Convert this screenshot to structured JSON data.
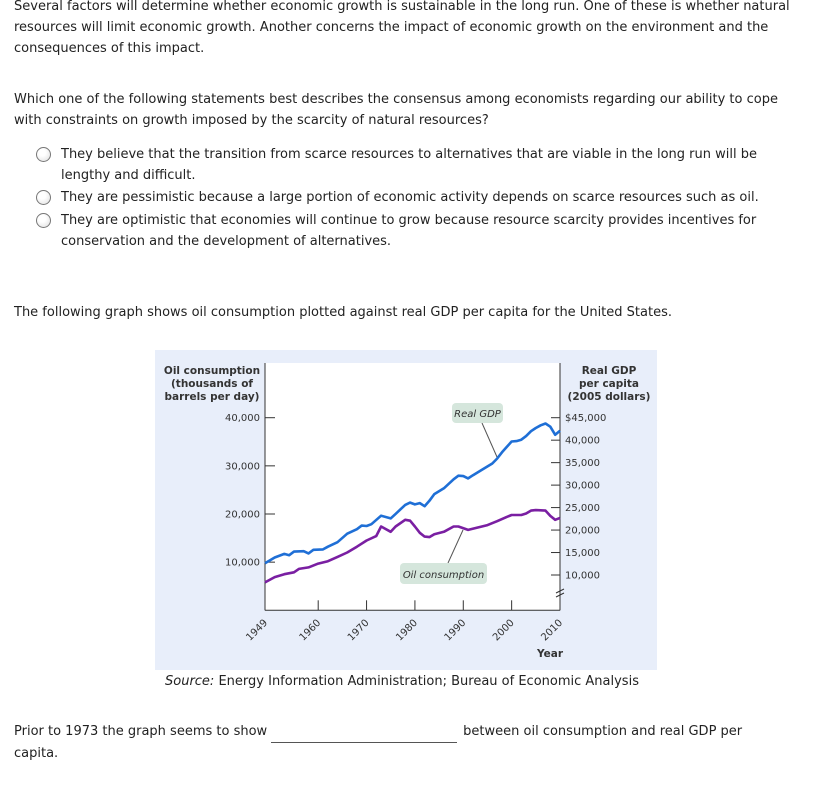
{
  "intro": "Several factors will determine whether economic growth is sustainable in the long run. One of these is whether natural resources will limit economic growth. Another concerns the impact of economic growth on the environment and the consequences of this impact.",
  "question": "Which one of the following statements best describes the consensus among economists regarding our ability to cope with constraints on growth imposed by the scarcity of natural resources?",
  "options": [
    {
      "label": "They believe that the transition from scarce resources to alternatives that are viable in the long run will be lengthy and difficult.",
      "selected": false
    },
    {
      "label": "They are pessimistic because a large portion of economic activity depends on scarce resources such as oil.",
      "selected": false
    },
    {
      "label": "They are optimistic that economies will continue to grow because resource scarcity provides incentives for conservation and the development of alternatives.",
      "selected": false
    }
  ],
  "graph_intro": "The following graph shows oil consumption plotted against real GDP per capita for the United States.",
  "source": {
    "prefix": "Source:",
    "text": " Energy Information Administration; Bureau of Economic Analysis"
  },
  "fill_in": {
    "before": "Prior to 1973 the graph seems to show",
    "value": "",
    "after": "between oil consumption and real GDP per",
    "after2": "capita."
  },
  "chart_data": {
    "type": "line",
    "xlabel": "Year",
    "x_ticks": [
      "1949",
      "1960",
      "1970",
      "1980",
      "1990",
      "2000",
      "2010"
    ],
    "xlim": [
      1949,
      2010
    ],
    "left_axis": {
      "label": [
        "Oil consumption",
        "(thousands of",
        "barrels per day)"
      ],
      "ticks": [
        "40,000",
        "30,000",
        "20,000",
        "10,000"
      ],
      "tick_values": [
        40000,
        30000,
        20000,
        10000
      ],
      "ylim": [
        0,
        40000
      ]
    },
    "right_axis": {
      "label": [
        "Real GDP",
        "per capita",
        "(2005 dollars)"
      ],
      "ticks": [
        "$45,000",
        "40,000",
        "35,000",
        "30,000",
        "25,000",
        "20,000",
        "15,000",
        "10,000"
      ],
      "tick_values": [
        45000,
        40000,
        35000,
        30000,
        25000,
        20000,
        15000,
        10000
      ],
      "ylim": [
        10000,
        45000
      ],
      "axis_break": true
    },
    "colors": {
      "real_gdp": "#1f6fd6",
      "oil": "#7a1fa2",
      "panel_bg": "#e8eefa",
      "label_bg": "#d5e6dc"
    },
    "series": [
      {
        "name": "Real GDP",
        "axis": "right",
        "x": [
          1949,
          1951,
          1953,
          1954,
          1955,
          1957,
          1958,
          1959,
          1961,
          1962,
          1964,
          1966,
          1968,
          1969,
          1970,
          1971,
          1973,
          1975,
          1976,
          1978,
          1979,
          1980,
          1981,
          1982,
          1983,
          1984,
          1986,
          1988,
          1989,
          1990,
          1991,
          1992,
          1994,
          1996,
          1997,
          1998,
          1999,
          2000,
          2001,
          2002,
          2003,
          2004,
          2005,
          2006,
          2007,
          2008,
          2009,
          2010
        ],
        "y": [
          12600,
          13900,
          14700,
          14400,
          15200,
          15300,
          14800,
          15600,
          15700,
          16300,
          17300,
          19200,
          20200,
          21000,
          20900,
          21300,
          23200,
          22600,
          23600,
          25600,
          26100,
          25700,
          26000,
          25300,
          26500,
          28000,
          29300,
          31300,
          32100,
          32000,
          31500,
          32200,
          33500,
          34800,
          35900,
          37300,
          38500,
          39700,
          39800,
          40100,
          40900,
          42000,
          42700,
          43300,
          43700,
          43000,
          41200,
          42100
        ]
      },
      {
        "name": "Oil consumption",
        "axis": "left",
        "x": [
          1949,
          1951,
          1953,
          1955,
          1956,
          1958,
          1960,
          1962,
          1964,
          1966,
          1968,
          1970,
          1972,
          1973,
          1975,
          1976,
          1978,
          1979,
          1980,
          1981,
          1982,
          1983,
          1984,
          1986,
          1988,
          1989,
          1991,
          1993,
          1995,
          1997,
          1999,
          2000,
          2002,
          2003,
          2004,
          2005,
          2007,
          2008,
          2009,
          2010
        ],
        "y": [
          5800,
          6900,
          7500,
          7900,
          8600,
          8900,
          9700,
          10200,
          11100,
          12000,
          13200,
          14500,
          15400,
          17400,
          16300,
          17400,
          18800,
          18600,
          17400,
          16100,
          15300,
          15200,
          15800,
          16300,
          17400,
          17400,
          16700,
          17200,
          17700,
          18500,
          19400,
          19800,
          19800,
          20100,
          20700,
          20800,
          20700,
          19600,
          18800,
          19200
        ]
      }
    ]
  }
}
